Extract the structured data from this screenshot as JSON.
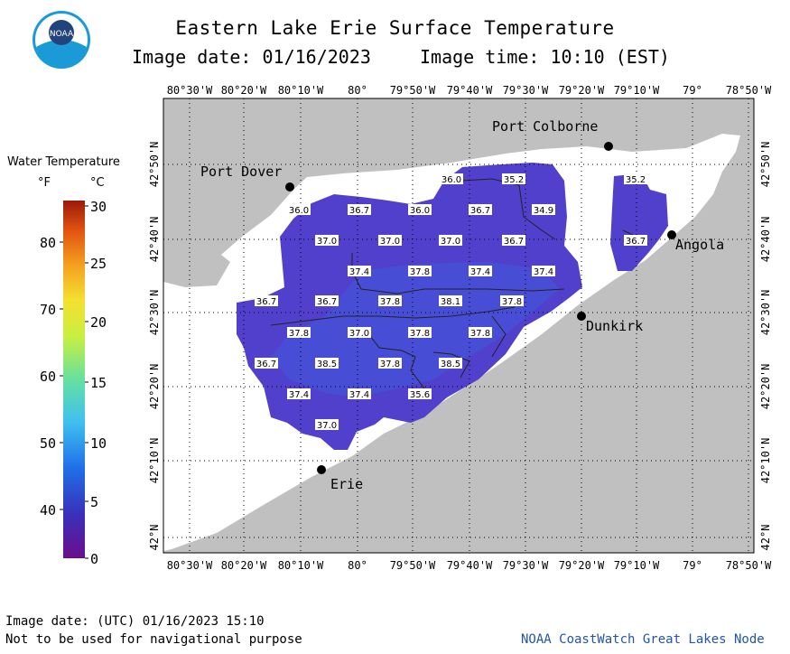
{
  "header": {
    "title": "Eastern Lake Erie Surface Temperature",
    "date_label": "Image date: 01/16/2023",
    "time_label": "Image time: 10:10 (EST)"
  },
  "logo": {
    "text": "NOAA"
  },
  "legend": {
    "title": "Water Temperature",
    "unit_f": "°F",
    "unit_c": "°C",
    "f_ticks": [
      "80",
      "70",
      "60",
      "50",
      "40"
    ],
    "c_ticks": [
      "30",
      "25",
      "20",
      "15",
      "10",
      "5",
      "0"
    ]
  },
  "axes": {
    "lon_labels": [
      "80°30'W",
      "80°20'W",
      "80°10'W",
      "80°",
      "79°50'W",
      "79°40'W",
      "79°30'W",
      "79°20'W",
      "79°10'W",
      "79°",
      "78°50'W"
    ],
    "lat_labels": [
      "42°50'N",
      "42°40'N",
      "42°30'N",
      "42°20'N",
      "42°10'N",
      "42°N"
    ]
  },
  "places": {
    "port_colborne": "Port Colborne",
    "port_dover": "Port Dover",
    "angola": "Angola",
    "dunkirk": "Dunkirk",
    "erie": "Erie"
  },
  "temperature_labels": [
    "36.0",
    "35.2",
    "35.2",
    "36.0",
    "36.7",
    "36.0",
    "36.7",
    "34.9",
    "37.0",
    "37.0",
    "37.0",
    "36.7",
    "36.7",
    "37.4",
    "37.8",
    "37.4",
    "37.4",
    "36.7",
    "36.7",
    "37.8",
    "38.1",
    "37.8",
    "37.8",
    "37.0",
    "37.8",
    "37.8",
    "36.7",
    "38.5",
    "37.8",
    "38.5",
    "37.4",
    "37.4",
    "35.6",
    "37.0"
  ],
  "footer": {
    "utc_date": "Image date: (UTC) 01/16/2023  15:10",
    "disclaimer": "Not to be used for navigational purpose",
    "credit": "NOAA CoastWatch Great Lakes Node"
  },
  "colors": {
    "land": "#c0c0c0",
    "ice_or_nodata": "#ffffff",
    "water_cold": "#5438c8",
    "water_warm": "#4a4ed6"
  }
}
